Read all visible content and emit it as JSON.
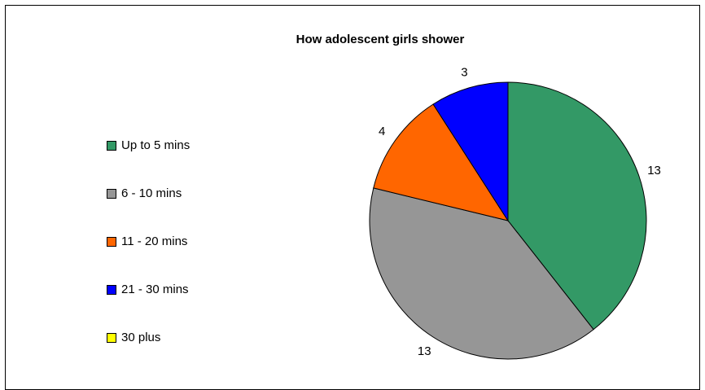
{
  "chart_data": {
    "type": "pie",
    "title": "How adolescent girls shower",
    "categories": [
      "Up to 5 mins",
      "6 - 10 mins",
      "11 - 20 mins",
      "21 - 30 mins",
      "30 plus"
    ],
    "values": [
      13,
      13,
      4,
      3,
      0
    ],
    "data_labels": [
      "13",
      "13",
      "4",
      "3",
      ""
    ],
    "colors": [
      "#339966",
      "#969696",
      "#ff6600",
      "#0000ff",
      "#ffff00"
    ],
    "legend_position": "left",
    "start_angle_deg": 0,
    "direction": "clockwise"
  }
}
